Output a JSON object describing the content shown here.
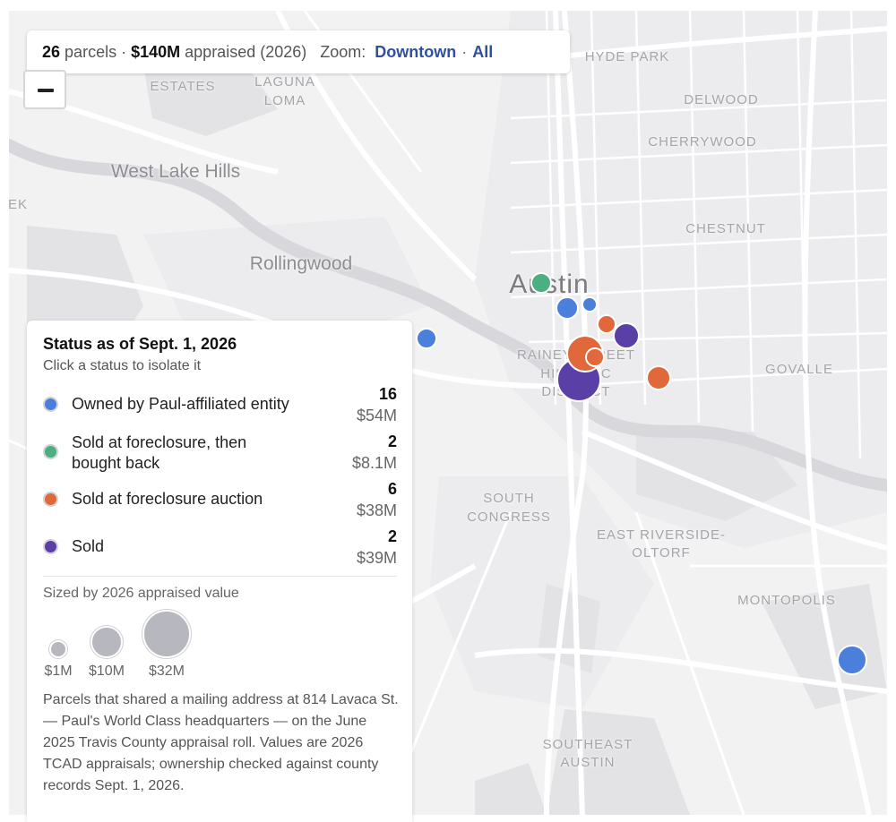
{
  "summary": {
    "count": "26",
    "count_suffix": "parcels ·",
    "value": "$140M",
    "value_suffix": "appraised (2026)",
    "zoom_label": "Zoom:",
    "zoom_downtown": "Downtown",
    "zoom_sep": "·",
    "zoom_all": "All"
  },
  "map_labels": {
    "hyde_park": "HYDE PARK",
    "estates": "ESTATES",
    "laguna": "LAGUNA",
    "loma": "LOMA",
    "delwood": "DELWOOD",
    "cherrywood": "CHERRYWOOD",
    "west_lake_hills": "West Lake Hills",
    "ek": "EK",
    "chestnut": "CHESTNUT",
    "rollingwood": "Rollingwood",
    "austin": "Austin",
    "rainey_1": "RAINEY STREET",
    "rainey_2": "HISTORIC",
    "rainey_3": "DISTRICT",
    "govalle": "GOVALLE",
    "south_congress_1": "SOUTH",
    "south_congress_2": "CONGRESS",
    "east_riverside_1": "EAST RIVERSIDE-",
    "east_riverside_2": "OLTORF",
    "montopolis": "MONTOPOLIS",
    "southeast_1": "SOUTHEAST",
    "southeast_2": "AUSTIN"
  },
  "colors": {
    "owned": "#4a7fdb",
    "bought_back": "#4caf82",
    "foreclosure": "#e0683a",
    "sold": "#5a3fa6"
  },
  "legend": {
    "title": "Status as of Sept. 1, 2026",
    "subtitle": "Click a status to isolate it",
    "statuses": [
      {
        "key": "owned",
        "label": "Owned by Paul-affiliated entity",
        "count": "16",
        "value": "$54M"
      },
      {
        "key": "bought_back",
        "label": "Sold at foreclosure, then bought back",
        "count": "2",
        "value": "$8.1M"
      },
      {
        "key": "foreclosure",
        "label": "Sold at foreclosure auction",
        "count": "6",
        "value": "$38M"
      },
      {
        "key": "sold",
        "label": "Sold",
        "count": "2",
        "value": "$39M"
      }
    ],
    "sized_by": "Sized by 2026 appraised value",
    "size_keys": [
      "$1M",
      "$10M",
      "$32M"
    ],
    "note": "Parcels that shared a mailing address at 814 Lavaca St. — Paul's World Class headquarters — on the June 2025 Travis County appraisal roll. Values are 2026 TCAD appraisals; ownership checked against county records Sept. 1, 2026."
  },
  "zoom_control": {
    "icon": "minus-icon"
  }
}
